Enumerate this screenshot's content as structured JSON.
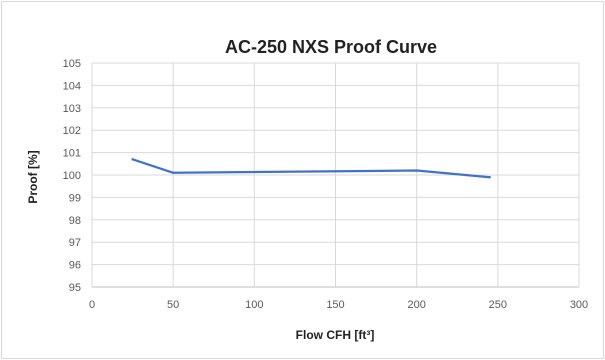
{
  "chart_data": {
    "type": "line",
    "title": "AC-250 NXS Proof Curve",
    "xlabel": "Flow CFH [ft³]",
    "ylabel": "Proof [%]",
    "xlim": [
      0,
      300
    ],
    "ylim": [
      95,
      105
    ],
    "x_ticks": [
      0,
      50,
      100,
      150,
      200,
      250,
      300
    ],
    "y_ticks": [
      95,
      96,
      97,
      98,
      99,
      100,
      101,
      102,
      103,
      104,
      105
    ],
    "grid": true,
    "legend": "none",
    "series": [
      {
        "x": [
          25,
          50,
          200,
          245
        ],
        "y": [
          100.7,
          100.1,
          100.2,
          99.9
        ],
        "color": "#4472c4"
      }
    ],
    "colors": {
      "gridline": "#d9d9d9",
      "axis": "#bfbfbf"
    }
  }
}
